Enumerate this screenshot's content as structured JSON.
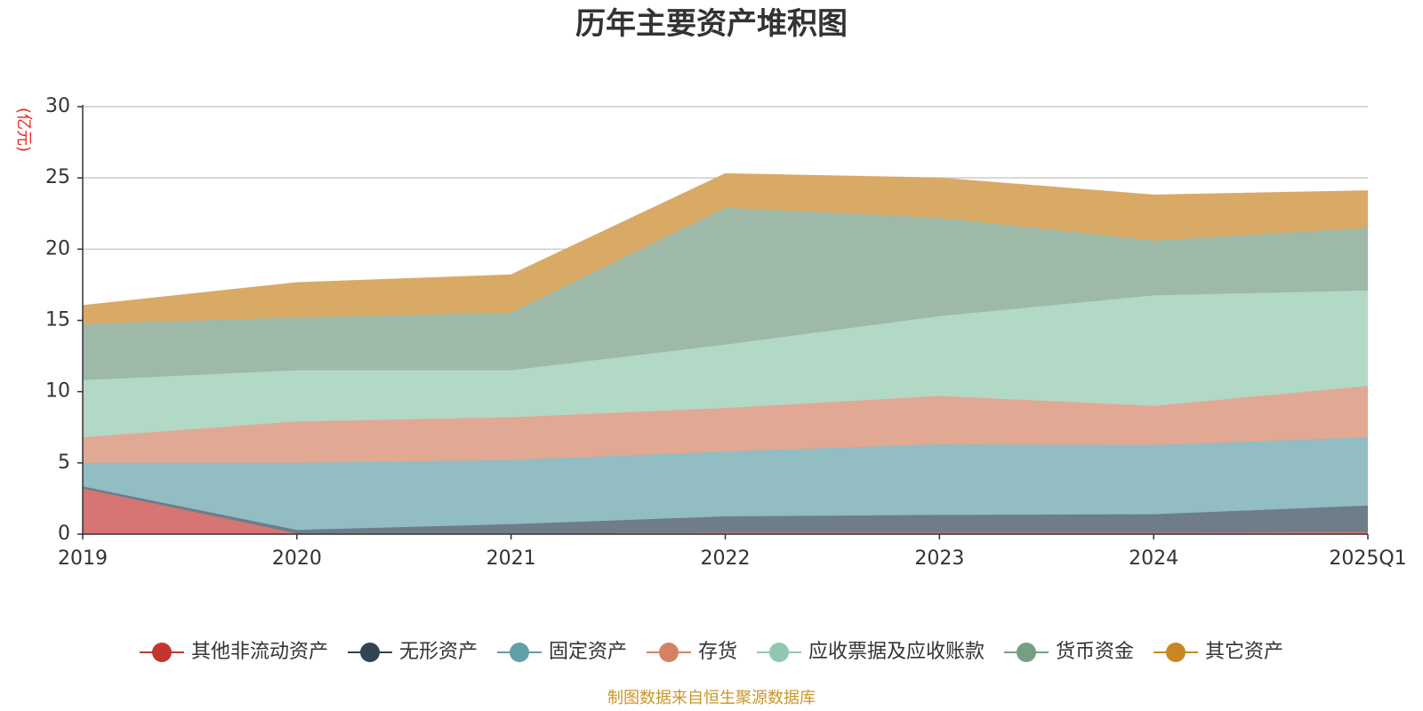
{
  "chart_data": {
    "type": "area",
    "stacked": true,
    "title": "历年主要资产堆积图",
    "ylabel": "(亿元)",
    "source": "制图数据来自恒生聚源数据库",
    "categories": [
      "2019",
      "2020",
      "2021",
      "2022",
      "2023",
      "2024",
      "2025Q1"
    ],
    "ylim": [
      0,
      30
    ],
    "yticks": [
      "0",
      "5",
      "10",
      "15",
      "20",
      "25",
      "30"
    ],
    "grid": true,
    "legend_position": "bottom",
    "series": [
      {
        "name": "其他非流动资产",
        "values": [
          3.2,
          0.05,
          0.05,
          0.1,
          0.1,
          0.1,
          0.15
        ],
        "color": "#c23531",
        "fill": "#d67573"
      },
      {
        "name": "无形资产",
        "values": [
          0.15,
          0.25,
          0.65,
          1.15,
          1.25,
          1.3,
          1.85
        ],
        "color": "#2f4554",
        "fill": "#6e7d88"
      },
      {
        "name": "固定资产",
        "values": [
          1.65,
          4.7,
          4.5,
          4.55,
          4.95,
          4.85,
          4.8
        ],
        "color": "#61a0a8",
        "fill": "#91bdc3"
      },
      {
        "name": "存货",
        "values": [
          1.8,
          2.9,
          3.0,
          3.05,
          3.4,
          2.75,
          3.6
        ],
        "color": "#d48265",
        "fill": "#e1a893"
      },
      {
        "name": "应收票据及应收账款",
        "values": [
          4.0,
          3.6,
          3.3,
          4.45,
          5.6,
          7.75,
          6.7
        ],
        "color": "#91c7ae",
        "fill": "#b2d8c6"
      },
      {
        "name": "货币资金",
        "values": [
          3.95,
          3.7,
          4.05,
          9.6,
          6.9,
          3.85,
          4.4
        ],
        "color": "#749f83",
        "fill": "#9eb9a8"
      },
      {
        "name": "其它资产",
        "values": [
          1.3,
          2.45,
          2.65,
          2.4,
          2.8,
          3.2,
          2.6
        ],
        "color": "#ca8622",
        "fill": "#d9a966"
      }
    ]
  }
}
